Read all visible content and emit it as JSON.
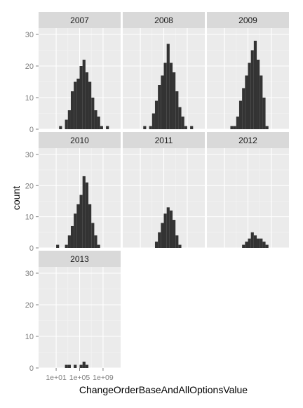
{
  "chart_data": {
    "type": "bar",
    "subtype": "faceted-histogram",
    "xlabel": "ChangeOrderBaseAndAllOptionsValue",
    "ylabel": "count",
    "x_scale": "log10",
    "x_tick_labels": [
      "1e+01",
      "1e+05",
      "1e+09"
    ],
    "x_tick_values": [
      10,
      100000,
      1000000000
    ],
    "xlim": [
      0.01,
      1000000000000
    ],
    "ylim": [
      0,
      32
    ],
    "y_tick_labels": [
      "0",
      "10",
      "20",
      "30"
    ],
    "y_ticks": [
      0,
      10,
      20,
      30
    ],
    "bin_width_log10": 0.5,
    "bin_starts_log10": [
      1.0,
      1.5,
      2.0,
      2.5,
      3.0,
      3.5,
      4.0,
      4.5,
      5.0,
      5.5,
      6.0,
      6.5,
      7.0,
      7.5,
      8.0,
      8.5,
      9.0,
      9.5,
      10.0
    ],
    "grid": true,
    "panel_background": "#ebebeb",
    "strip_background": "#d9d9d9",
    "bar_color": "#333333",
    "grid_color": "#ffffff",
    "facets": [
      {
        "label": "2007",
        "values": [
          0,
          1,
          0,
          3,
          6,
          12,
          15,
          16,
          20,
          22,
          18,
          15,
          10,
          6,
          4,
          1,
          0,
          1,
          0
        ]
      },
      {
        "label": "2008",
        "values": [
          0,
          1,
          0,
          1,
          5,
          9,
          14,
          17,
          21,
          27,
          21,
          18,
          12,
          7,
          4,
          1,
          0,
          1,
          0
        ]
      },
      {
        "label": "2009",
        "values": [
          0,
          0,
          1,
          1,
          4,
          9,
          13,
          17,
          21,
          25,
          28,
          22,
          17,
          10,
          1,
          0,
          0,
          0,
          0
        ]
      },
      {
        "label": "2010",
        "values": [
          1,
          0,
          0,
          1,
          4,
          7,
          11,
          14,
          17,
          23,
          21,
          14,
          8,
          4,
          1,
          0,
          0,
          0,
          0
        ]
      },
      {
        "label": "2011",
        "values": [
          0,
          0,
          0,
          0,
          0,
          2,
          5,
          8,
          11,
          13,
          12,
          9,
          4,
          1,
          0,
          0,
          0,
          0,
          0
        ]
      },
      {
        "label": "2012",
        "values": [
          0,
          0,
          0,
          0,
          0,
          0,
          1,
          2,
          3,
          5,
          4,
          3,
          3,
          2,
          1,
          0,
          0,
          0,
          0
        ]
      },
      {
        "label": "2013",
        "values": [
          0,
          0,
          0,
          1,
          1,
          0,
          1,
          0,
          1,
          2,
          1,
          0,
          0,
          0,
          0,
          0,
          0,
          0,
          0
        ]
      }
    ]
  }
}
